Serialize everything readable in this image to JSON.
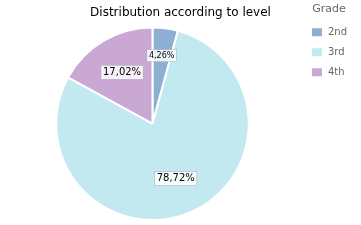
{
  "chart_data": {
    "type": "pie",
    "title": "Distribution according to level",
    "categories": [
      "2nd",
      "3rd",
      "4th"
    ],
    "values": [
      4.26,
      78.72,
      17.02
    ],
    "value_labels": [
      "4,26%",
      "78,72%",
      "17,02%"
    ],
    "colors": [
      "#8eafd4",
      "#c2e8f0",
      "#c9a8d4"
    ],
    "legend_title": "Grade",
    "legend": "upper right",
    "data_labels": true
  }
}
